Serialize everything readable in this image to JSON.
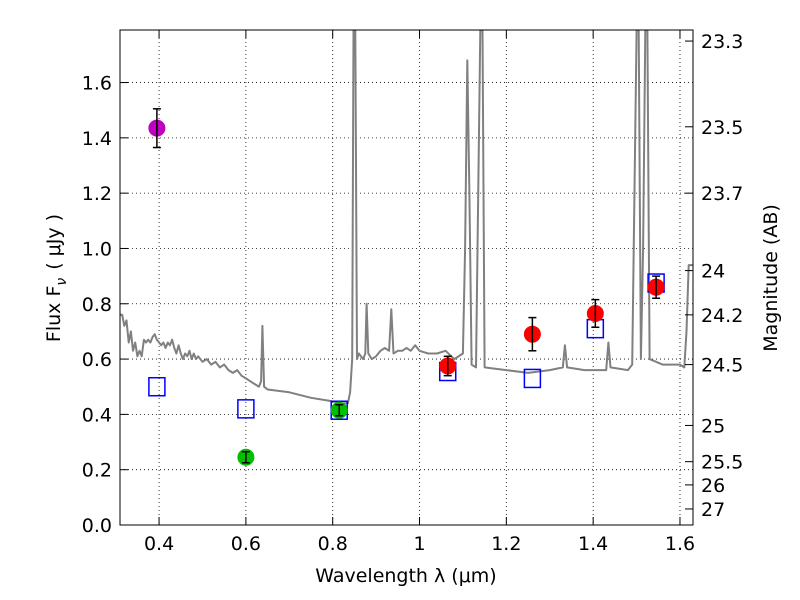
{
  "chart_data": {
    "type": "scatter",
    "title": "",
    "xlabel": "Wavelength  λ (μm)",
    "ylabel": "Flux  F",
    "ylabel_sub": "ν",
    "ylabel_unit": "( μJy )",
    "ylabel_right": "Magnitude (AB)",
    "xlim": [
      0.31,
      1.63
    ],
    "ylim": [
      0.0,
      1.79
    ],
    "x_ticks": [
      0.4,
      0.6,
      0.8,
      1.0,
      1.2,
      1.4,
      1.6
    ],
    "x_tick_labels": [
      "0.4",
      "0.6",
      "0.8",
      "1",
      "1.2",
      "1.4",
      "1.6"
    ],
    "y_ticks": [
      0.0,
      0.2,
      0.4,
      0.6,
      0.8,
      1.0,
      1.2,
      1.4,
      1.6
    ],
    "y_tick_labels": [
      "0.0",
      "0.2",
      "0.4",
      "0.6",
      "0.8",
      "1.0",
      "1.2",
      "1.4",
      "1.6"
    ],
    "right_ticks": [
      {
        "label": "23.3",
        "flux": 1.75
      },
      {
        "label": "23.5",
        "flux": 1.44
      },
      {
        "label": "23.7",
        "flux": 1.2
      },
      {
        "label": "24",
        "flux": 0.92
      },
      {
        "label": "24.2",
        "flux": 0.76
      },
      {
        "label": "24.5",
        "flux": 0.58
      },
      {
        "label": "25",
        "flux": 0.36
      },
      {
        "label": "25.5",
        "flux": 0.229
      },
      {
        "label": "26",
        "flux": 0.145
      },
      {
        "label": "27",
        "flux": 0.058
      }
    ],
    "grid": true,
    "series": [
      {
        "kind": "spectrum",
        "color": "#808080",
        "points": [
          [
            0.31,
            0.76
          ],
          [
            0.315,
            0.76
          ],
          [
            0.32,
            0.72
          ],
          [
            0.325,
            0.74
          ],
          [
            0.33,
            0.66
          ],
          [
            0.335,
            0.7
          ],
          [
            0.34,
            0.63
          ],
          [
            0.345,
            0.66
          ],
          [
            0.35,
            0.61
          ],
          [
            0.355,
            0.63
          ],
          [
            0.36,
            0.61
          ],
          [
            0.365,
            0.67
          ],
          [
            0.37,
            0.66
          ],
          [
            0.375,
            0.67
          ],
          [
            0.38,
            0.66
          ],
          [
            0.385,
            0.68
          ],
          [
            0.39,
            0.69
          ],
          [
            0.395,
            0.67
          ],
          [
            0.4,
            0.66
          ],
          [
            0.405,
            0.65
          ],
          [
            0.41,
            0.66
          ],
          [
            0.415,
            0.64
          ],
          [
            0.42,
            0.66
          ],
          [
            0.425,
            0.65
          ],
          [
            0.43,
            0.67
          ],
          [
            0.435,
            0.64
          ],
          [
            0.44,
            0.62
          ],
          [
            0.445,
            0.65
          ],
          [
            0.45,
            0.62
          ],
          [
            0.455,
            0.6
          ],
          [
            0.46,
            0.62
          ],
          [
            0.465,
            0.61
          ],
          [
            0.47,
            0.63
          ],
          [
            0.475,
            0.6
          ],
          [
            0.48,
            0.62
          ],
          [
            0.485,
            0.6
          ],
          [
            0.49,
            0.61
          ],
          [
            0.5,
            0.59
          ],
          [
            0.51,
            0.6
          ],
          [
            0.52,
            0.58
          ],
          [
            0.53,
            0.59
          ],
          [
            0.54,
            0.57
          ],
          [
            0.55,
            0.58
          ],
          [
            0.56,
            0.56
          ],
          [
            0.57,
            0.55
          ],
          [
            0.58,
            0.56
          ],
          [
            0.59,
            0.54
          ],
          [
            0.6,
            0.53
          ],
          [
            0.61,
            0.52
          ],
          [
            0.62,
            0.51
          ],
          [
            0.63,
            0.5
          ],
          [
            0.635,
            0.52
          ],
          [
            0.638,
            0.72
          ],
          [
            0.642,
            0.5
          ],
          [
            0.65,
            0.49
          ],
          [
            0.7,
            0.48
          ],
          [
            0.75,
            0.46
          ],
          [
            0.79,
            0.45
          ],
          [
            0.82,
            0.44
          ],
          [
            0.835,
            0.44
          ],
          [
            0.84,
            0.48
          ],
          [
            0.845,
            0.6
          ],
          [
            0.848,
            1.79
          ],
          [
            0.852,
            1.79
          ],
          [
            0.856,
            0.6
          ],
          [
            0.86,
            0.62
          ],
          [
            0.87,
            0.6
          ],
          [
            0.875,
            0.62
          ],
          [
            0.878,
            0.8
          ],
          [
            0.882,
            0.62
          ],
          [
            0.89,
            0.6
          ],
          [
            0.9,
            0.61
          ],
          [
            0.91,
            0.63
          ],
          [
            0.92,
            0.64
          ],
          [
            0.93,
            0.63
          ],
          [
            0.935,
            0.78
          ],
          [
            0.94,
            0.62
          ],
          [
            0.95,
            0.63
          ],
          [
            0.96,
            0.63
          ],
          [
            0.97,
            0.64
          ],
          [
            0.98,
            0.63
          ],
          [
            0.99,
            0.65
          ],
          [
            1.0,
            0.63
          ],
          [
            1.02,
            0.62
          ],
          [
            1.04,
            0.62
          ],
          [
            1.06,
            0.63
          ],
          [
            1.08,
            0.6
          ],
          [
            1.1,
            0.62
          ],
          [
            1.105,
            1.0
          ],
          [
            1.11,
            1.68
          ],
          [
            1.115,
            1.2
          ],
          [
            1.12,
            0.58
          ],
          [
            1.13,
            0.57
          ],
          [
            1.14,
            1.79
          ],
          [
            1.145,
            1.79
          ],
          [
            1.15,
            0.57
          ],
          [
            1.2,
            0.56
          ],
          [
            1.25,
            0.55
          ],
          [
            1.3,
            0.56
          ],
          [
            1.33,
            0.57
          ],
          [
            1.335,
            0.65
          ],
          [
            1.34,
            0.57
          ],
          [
            1.38,
            0.56
          ],
          [
            1.43,
            0.56
          ],
          [
            1.435,
            0.66
          ],
          [
            1.44,
            0.57
          ],
          [
            1.48,
            0.56
          ],
          [
            1.49,
            0.58
          ],
          [
            1.5,
            1.79
          ],
          [
            1.505,
            1.79
          ],
          [
            1.51,
            0.6
          ],
          [
            1.515,
            1.0
          ],
          [
            1.52,
            1.79
          ],
          [
            1.525,
            1.79
          ],
          [
            1.53,
            0.6
          ],
          [
            1.56,
            0.58
          ],
          [
            1.6,
            0.58
          ],
          [
            1.61,
            0.57
          ],
          [
            1.615,
            0.7
          ],
          [
            1.62,
            0.94
          ],
          [
            1.63,
            0.94
          ]
        ]
      },
      {
        "kind": "model-boxes",
        "color": "#0000ff",
        "points": [
          [
            0.395,
            0.5
          ],
          [
            0.6,
            0.42
          ],
          [
            0.815,
            0.415
          ],
          [
            1.065,
            0.555
          ],
          [
            1.26,
            0.53
          ],
          [
            1.405,
            0.71
          ],
          [
            1.545,
            0.875
          ]
        ]
      },
      {
        "kind": "measured",
        "points": [
          {
            "x": 0.395,
            "y": 1.435,
            "err": 0.07,
            "color": "#bf00bf"
          },
          {
            "x": 0.6,
            "y": 0.245,
            "err": 0.02,
            "color": "#00bf00"
          },
          {
            "x": 0.815,
            "y": 0.415,
            "err": 0.02,
            "color": "#00bf00"
          },
          {
            "x": 1.065,
            "y": 0.575,
            "err": 0.035,
            "color": "#ff0000"
          },
          {
            "x": 1.26,
            "y": 0.69,
            "err": 0.06,
            "color": "#ff0000"
          },
          {
            "x": 1.405,
            "y": 0.765,
            "err": 0.05,
            "color": "#ff0000"
          },
          {
            "x": 1.545,
            "y": 0.86,
            "err": 0.04,
            "color": "#ff0000"
          }
        ]
      }
    ]
  }
}
